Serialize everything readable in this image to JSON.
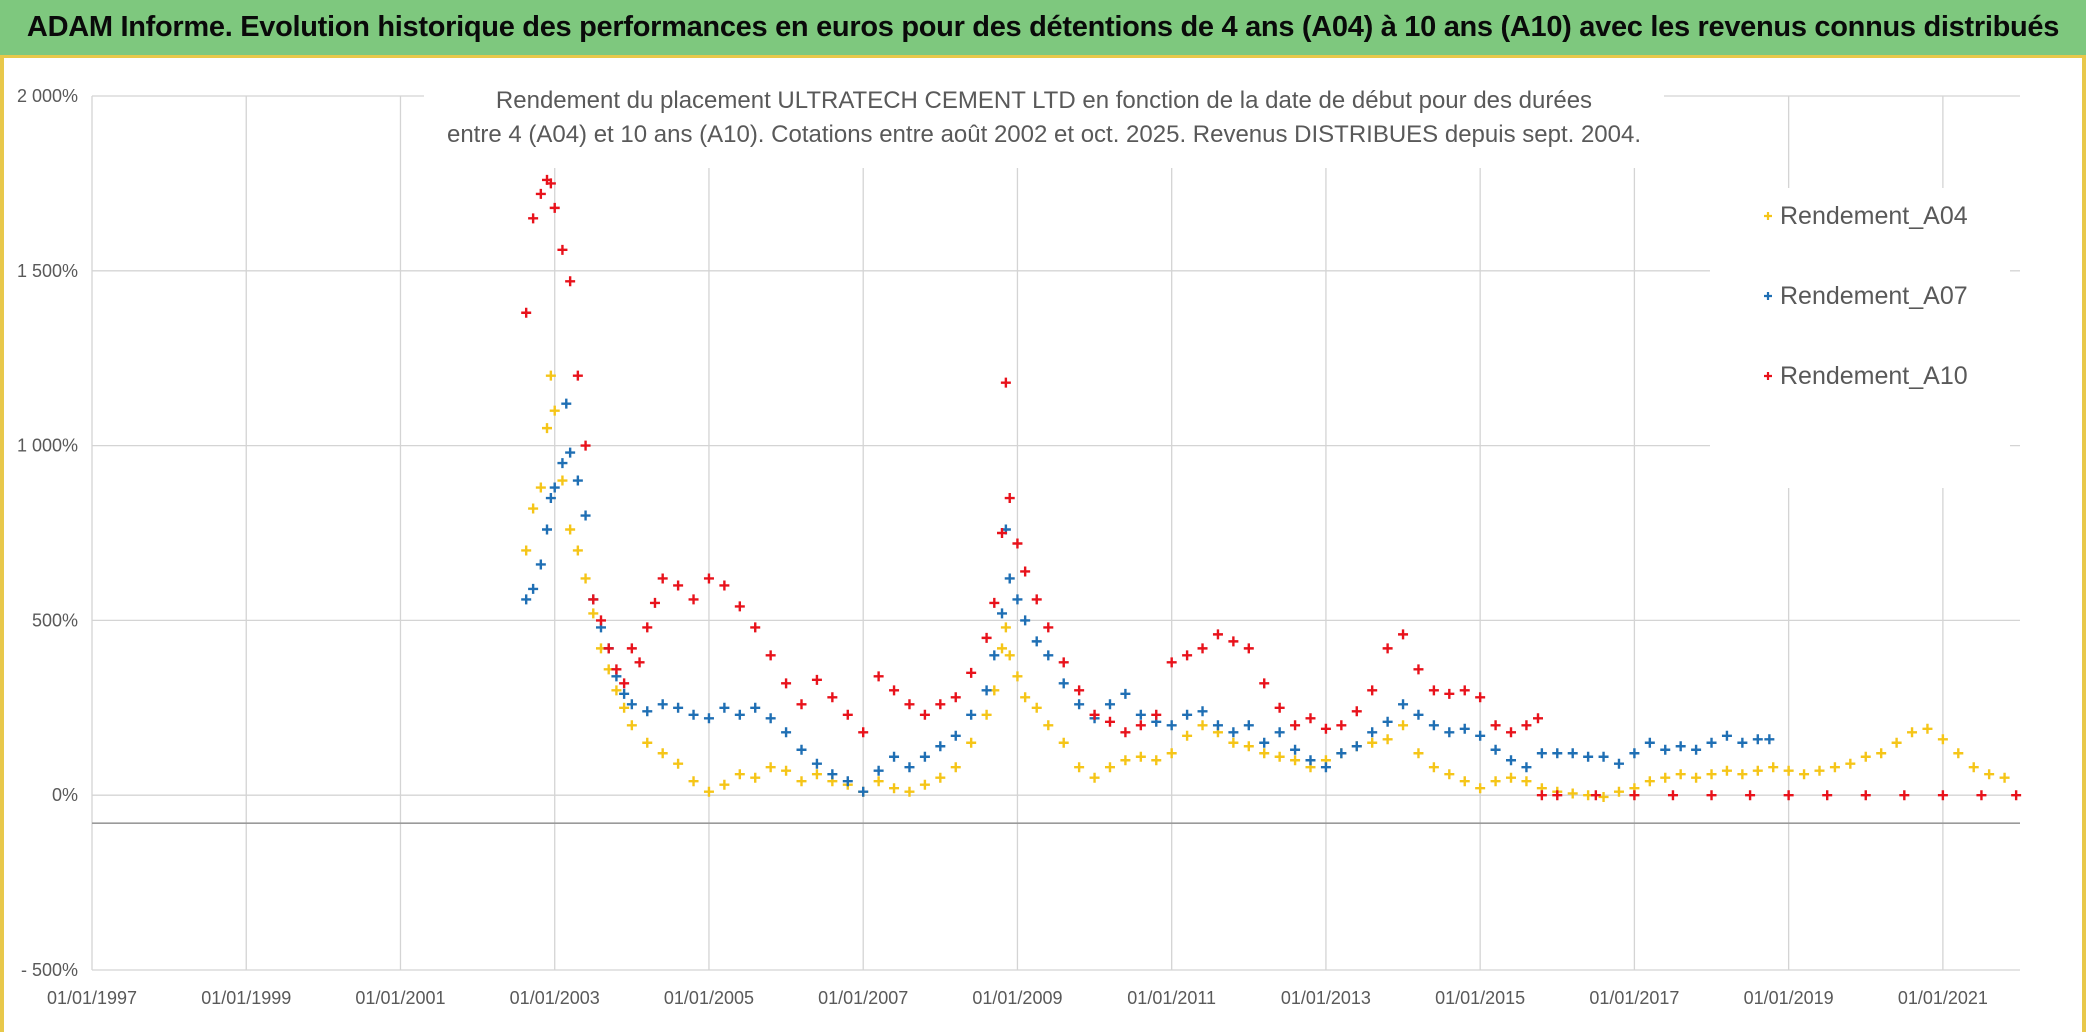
{
  "banner": {
    "title": "ADAM Informe. Evolution historique des performances en euros pour des détentions de 4 ans (A04) à 10 ans (A10) avec les revenus connus distribués"
  },
  "colors": {
    "A04": "#f5c518",
    "A07": "#1f6fb4",
    "A10": "#e8121b",
    "banner": "#7ec87e",
    "frame": "#e8c84a",
    "grid": "#d4d4d4",
    "text": "#595959"
  },
  "chart_data": {
    "type": "scatter",
    "title_lines": [
      "Rendement du placement ULTRATECH CEMENT LTD en fonction de la date de début pour des durées",
      "entre 4 (A04) et 10 ans (A10). Cotations entre août 2002 et oct. 2025. Revenus DISTRIBUES depuis sept. 2004."
    ],
    "xlabel": "",
    "ylabel": "",
    "xlim": [
      1997.0,
      2022.0
    ],
    "ylim": [
      -500,
      2000
    ],
    "y_ticks": [
      -500,
      0,
      500,
      1000,
      1500,
      2000
    ],
    "y_tick_labels": [
      "- 500%",
      "0%",
      "500%",
      "1 000%",
      "1 500%",
      "2 000%"
    ],
    "x_ticks": [
      1997,
      1999,
      2001,
      2003,
      2005,
      2007,
      2009,
      2011,
      2013,
      2015,
      2017,
      2019,
      2021
    ],
    "x_tick_labels": [
      "01/01/1997",
      "01/01/1999",
      "01/01/2001",
      "01/01/2003",
      "01/01/2005",
      "01/01/2007",
      "01/01/2009",
      "01/01/2011",
      "01/01/2013",
      "01/01/2015",
      "01/01/2017",
      "01/01/2019",
      "01/01/2021"
    ],
    "legend_position": "top-right",
    "marker": "+",
    "series": [
      {
        "name": "Rendement_A04",
        "points": [
          [
            2002.63,
            700
          ],
          [
            2002.72,
            820
          ],
          [
            2002.82,
            880
          ],
          [
            2002.9,
            1050
          ],
          [
            2002.95,
            1200
          ],
          [
            2003.0,
            1100
          ],
          [
            2003.1,
            900
          ],
          [
            2003.2,
            760
          ],
          [
            2003.3,
            700
          ],
          [
            2003.4,
            620
          ],
          [
            2003.5,
            520
          ],
          [
            2003.6,
            420
          ],
          [
            2003.7,
            360
          ],
          [
            2003.8,
            300
          ],
          [
            2003.9,
            250
          ],
          [
            2004.0,
            200
          ],
          [
            2004.2,
            150
          ],
          [
            2004.4,
            120
          ],
          [
            2004.6,
            90
          ],
          [
            2004.8,
            40
          ],
          [
            2005.0,
            10
          ],
          [
            2005.2,
            30
          ],
          [
            2005.4,
            60
          ],
          [
            2005.6,
            50
          ],
          [
            2005.8,
            80
          ],
          [
            2006.0,
            70
          ],
          [
            2006.2,
            40
          ],
          [
            2006.4,
            60
          ],
          [
            2006.6,
            40
          ],
          [
            2006.8,
            30
          ],
          [
            2007.0,
            10
          ],
          [
            2007.2,
            40
          ],
          [
            2007.4,
            20
          ],
          [
            2007.6,
            10
          ],
          [
            2007.8,
            30
          ],
          [
            2008.0,
            50
          ],
          [
            2008.2,
            80
          ],
          [
            2008.4,
            150
          ],
          [
            2008.6,
            230
          ],
          [
            2008.7,
            300
          ],
          [
            2008.8,
            420
          ],
          [
            2008.85,
            480
          ],
          [
            2008.9,
            400
          ],
          [
            2009.0,
            340
          ],
          [
            2009.1,
            280
          ],
          [
            2009.25,
            250
          ],
          [
            2009.4,
            200
          ],
          [
            2009.6,
            150
          ],
          [
            2009.8,
            80
          ],
          [
            2010.0,
            50
          ],
          [
            2010.2,
            80
          ],
          [
            2010.4,
            100
          ],
          [
            2010.6,
            110
          ],
          [
            2010.8,
            100
          ],
          [
            2011.0,
            120
          ],
          [
            2011.2,
            170
          ],
          [
            2011.4,
            200
          ],
          [
            2011.6,
            180
          ],
          [
            2011.8,
            150
          ],
          [
            2012.0,
            140
          ],
          [
            2012.2,
            120
          ],
          [
            2012.4,
            110
          ],
          [
            2012.6,
            100
          ],
          [
            2012.8,
            80
          ],
          [
            2013.0,
            100
          ],
          [
            2013.2,
            120
          ],
          [
            2013.4,
            140
          ],
          [
            2013.6,
            150
          ],
          [
            2013.8,
            160
          ],
          [
            2014.0,
            200
          ],
          [
            2014.2,
            120
          ],
          [
            2014.4,
            80
          ],
          [
            2014.6,
            60
          ],
          [
            2014.8,
            40
          ],
          [
            2015.0,
            20
          ],
          [
            2015.2,
            40
          ],
          [
            2015.4,
            50
          ],
          [
            2015.6,
            40
          ],
          [
            2015.8,
            20
          ],
          [
            2016.0,
            10
          ],
          [
            2016.2,
            5
          ],
          [
            2016.4,
            0
          ],
          [
            2016.6,
            -5
          ],
          [
            2016.8,
            10
          ],
          [
            2017.0,
            20
          ],
          [
            2017.2,
            40
          ],
          [
            2017.4,
            50
          ],
          [
            2017.6,
            60
          ],
          [
            2017.8,
            50
          ],
          [
            2018.0,
            60
          ],
          [
            2018.2,
            70
          ],
          [
            2018.4,
            60
          ],
          [
            2018.6,
            70
          ],
          [
            2018.8,
            80
          ],
          [
            2019.0,
            70
          ],
          [
            2019.2,
            60
          ],
          [
            2019.4,
            70
          ],
          [
            2019.6,
            80
          ],
          [
            2019.8,
            90
          ],
          [
            2020.0,
            110
          ],
          [
            2020.2,
            120
          ],
          [
            2020.4,
            150
          ],
          [
            2020.6,
            180
          ],
          [
            2020.8,
            190
          ],
          [
            2021.0,
            160
          ],
          [
            2021.2,
            120
          ],
          [
            2021.4,
            80
          ],
          [
            2021.6,
            60
          ],
          [
            2021.8,
            50
          ]
        ]
      },
      {
        "name": "Rendement_A07",
        "points": [
          [
            2002.63,
            560
          ],
          [
            2002.72,
            590
          ],
          [
            2002.82,
            660
          ],
          [
            2002.9,
            760
          ],
          [
            2002.95,
            850
          ],
          [
            2003.0,
            880
          ],
          [
            2003.1,
            950
          ],
          [
            2003.15,
            1120
          ],
          [
            2003.2,
            980
          ],
          [
            2003.3,
            900
          ],
          [
            2003.4,
            800
          ],
          [
            2003.5,
            560
          ],
          [
            2003.6,
            480
          ],
          [
            2003.7,
            420
          ],
          [
            2003.8,
            340
          ],
          [
            2003.9,
            290
          ],
          [
            2004.0,
            260
          ],
          [
            2004.2,
            240
          ],
          [
            2004.4,
            260
          ],
          [
            2004.6,
            250
          ],
          [
            2004.8,
            230
          ],
          [
            2005.0,
            220
          ],
          [
            2005.2,
            250
          ],
          [
            2005.4,
            230
          ],
          [
            2005.6,
            250
          ],
          [
            2005.8,
            220
          ],
          [
            2006.0,
            180
          ],
          [
            2006.2,
            130
          ],
          [
            2006.4,
            90
          ],
          [
            2006.6,
            60
          ],
          [
            2006.8,
            40
          ],
          [
            2007.0,
            10
          ],
          [
            2007.2,
            70
          ],
          [
            2007.4,
            110
          ],
          [
            2007.6,
            80
          ],
          [
            2007.8,
            110
          ],
          [
            2008.0,
            140
          ],
          [
            2008.2,
            170
          ],
          [
            2008.4,
            230
          ],
          [
            2008.6,
            300
          ],
          [
            2008.7,
            400
          ],
          [
            2008.8,
            520
          ],
          [
            2008.85,
            760
          ],
          [
            2008.9,
            620
          ],
          [
            2009.0,
            560
          ],
          [
            2009.1,
            500
          ],
          [
            2009.25,
            440
          ],
          [
            2009.4,
            400
          ],
          [
            2009.6,
            320
          ],
          [
            2009.8,
            260
          ],
          [
            2010.0,
            220
          ],
          [
            2010.2,
            260
          ],
          [
            2010.4,
            290
          ],
          [
            2010.6,
            230
          ],
          [
            2010.8,
            210
          ],
          [
            2011.0,
            200
          ],
          [
            2011.2,
            230
          ],
          [
            2011.4,
            240
          ],
          [
            2011.6,
            200
          ],
          [
            2011.8,
            180
          ],
          [
            2012.0,
            200
          ],
          [
            2012.2,
            150
          ],
          [
            2012.4,
            180
          ],
          [
            2012.6,
            130
          ],
          [
            2012.8,
            100
          ],
          [
            2013.0,
            80
          ],
          [
            2013.2,
            120
          ],
          [
            2013.4,
            140
          ],
          [
            2013.6,
            180
          ],
          [
            2013.8,
            210
          ],
          [
            2014.0,
            260
          ],
          [
            2014.2,
            230
          ],
          [
            2014.4,
            200
          ],
          [
            2014.6,
            180
          ],
          [
            2014.8,
            190
          ],
          [
            2015.0,
            170
          ],
          [
            2015.2,
            130
          ],
          [
            2015.4,
            100
          ],
          [
            2015.6,
            80
          ],
          [
            2015.8,
            120
          ],
          [
            2016.0,
            120
          ],
          [
            2016.2,
            120
          ],
          [
            2016.4,
            110
          ],
          [
            2016.6,
            110
          ],
          [
            2016.8,
            90
          ],
          [
            2017.0,
            120
          ],
          [
            2017.2,
            150
          ],
          [
            2017.4,
            130
          ],
          [
            2017.6,
            140
          ],
          [
            2017.8,
            130
          ],
          [
            2018.0,
            150
          ],
          [
            2018.2,
            170
          ],
          [
            2018.4,
            150
          ],
          [
            2018.6,
            160
          ],
          [
            2018.75,
            160
          ]
        ]
      },
      {
        "name": "Rendement_A10",
        "points": [
          [
            2002.63,
            1380
          ],
          [
            2002.72,
            1650
          ],
          [
            2002.82,
            1720
          ],
          [
            2002.9,
            1760
          ],
          [
            2002.95,
            1750
          ],
          [
            2003.0,
            1680
          ],
          [
            2003.1,
            1560
          ],
          [
            2003.2,
            1470
          ],
          [
            2003.3,
            1200
          ],
          [
            2003.4,
            1000
          ],
          [
            2003.5,
            560
          ],
          [
            2003.6,
            500
          ],
          [
            2003.7,
            420
          ],
          [
            2003.8,
            360
          ],
          [
            2003.9,
            320
          ],
          [
            2004.0,
            420
          ],
          [
            2004.1,
            380
          ],
          [
            2004.2,
            480
          ],
          [
            2004.3,
            550
          ],
          [
            2004.4,
            620
          ],
          [
            2004.6,
            600
          ],
          [
            2004.8,
            560
          ],
          [
            2005.0,
            620
          ],
          [
            2005.2,
            600
          ],
          [
            2005.4,
            540
          ],
          [
            2005.6,
            480
          ],
          [
            2005.8,
            400
          ],
          [
            2006.0,
            320
          ],
          [
            2006.2,
            260
          ],
          [
            2006.4,
            330
          ],
          [
            2006.6,
            280
          ],
          [
            2006.8,
            230
          ],
          [
            2007.0,
            180
          ],
          [
            2007.2,
            340
          ],
          [
            2007.4,
            300
          ],
          [
            2007.6,
            260
          ],
          [
            2007.8,
            230
          ],
          [
            2008.0,
            260
          ],
          [
            2008.2,
            280
          ],
          [
            2008.4,
            350
          ],
          [
            2008.6,
            450
          ],
          [
            2008.7,
            550
          ],
          [
            2008.8,
            750
          ],
          [
            2008.85,
            1180
          ],
          [
            2008.9,
            850
          ],
          [
            2009.0,
            720
          ],
          [
            2009.1,
            640
          ],
          [
            2009.25,
            560
          ],
          [
            2009.4,
            480
          ],
          [
            2009.6,
            380
          ],
          [
            2009.8,
            300
          ],
          [
            2010.0,
            230
          ],
          [
            2010.2,
            210
          ],
          [
            2010.4,
            180
          ],
          [
            2010.6,
            200
          ],
          [
            2010.8,
            230
          ],
          [
            2011.0,
            380
          ],
          [
            2011.2,
            400
          ],
          [
            2011.4,
            420
          ],
          [
            2011.6,
            460
          ],
          [
            2011.8,
            440
          ],
          [
            2012.0,
            420
          ],
          [
            2012.2,
            320
          ],
          [
            2012.4,
            250
          ],
          [
            2012.6,
            200
          ],
          [
            2012.8,
            220
          ],
          [
            2013.0,
            190
          ],
          [
            2013.2,
            200
          ],
          [
            2013.4,
            240
          ],
          [
            2013.6,
            300
          ],
          [
            2013.8,
            420
          ],
          [
            2014.0,
            460
          ],
          [
            2014.2,
            360
          ],
          [
            2014.4,
            300
          ],
          [
            2014.6,
            290
          ],
          [
            2014.8,
            300
          ],
          [
            2015.0,
            280
          ],
          [
            2015.2,
            200
          ],
          [
            2015.4,
            180
          ],
          [
            2015.6,
            200
          ],
          [
            2015.75,
            220
          ],
          [
            2015.8,
            0
          ],
          [
            2016.0,
            0
          ],
          [
            2016.5,
            0
          ],
          [
            2017.0,
            0
          ],
          [
            2017.5,
            0
          ],
          [
            2018.0,
            0
          ],
          [
            2018.5,
            0
          ],
          [
            2019.0,
            0
          ],
          [
            2019.5,
            0
          ],
          [
            2020.0,
            0
          ],
          [
            2020.5,
            0
          ],
          [
            2021.0,
            0
          ],
          [
            2021.5,
            0
          ],
          [
            2021.95,
            0
          ]
        ]
      }
    ]
  }
}
